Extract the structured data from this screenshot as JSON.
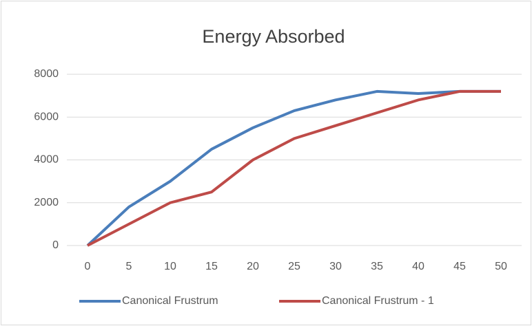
{
  "chart_data": {
    "type": "line",
    "title": "Energy Absorbed",
    "x": [
      0,
      5,
      10,
      15,
      20,
      25,
      30,
      35,
      40,
      45,
      50
    ],
    "xlim": [
      -2.5,
      52.5
    ],
    "xticks": [
      0,
      5,
      10,
      15,
      20,
      25,
      30,
      35,
      40,
      45,
      50
    ],
    "ylim": [
      0,
      8000
    ],
    "yticks": [
      0,
      2000,
      4000,
      6000,
      8000
    ],
    "grid": true,
    "legend": "bottom",
    "series": [
      {
        "name": "Canonical Frustrum",
        "color": "#4a7ebb",
        "values": [
          0,
          1800,
          3000,
          4500,
          5500,
          6300,
          6800,
          7200,
          7100,
          7200,
          7200
        ]
      },
      {
        "name": "Canonical Frustrum - 1",
        "color": "#be4b48",
        "values": [
          0,
          1000,
          2000,
          2500,
          4000,
          5000,
          5600,
          6200,
          6800,
          7200,
          7200
        ]
      }
    ]
  }
}
